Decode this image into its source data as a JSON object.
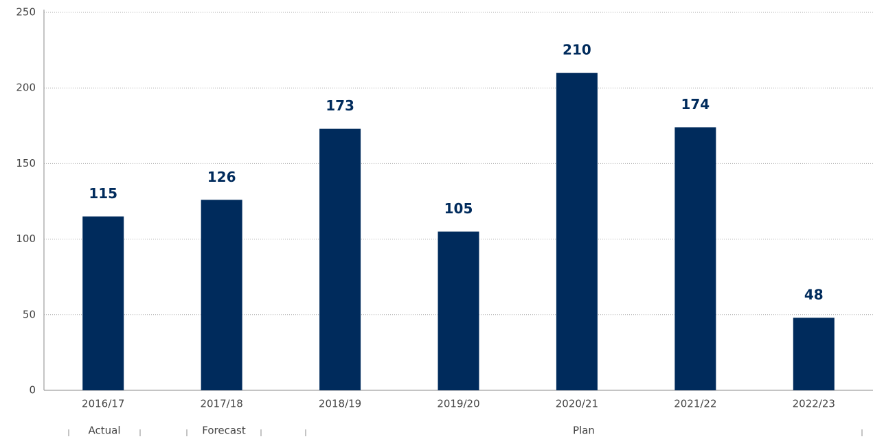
{
  "chart_data": {
    "type": "bar",
    "categories": [
      "2016/17",
      "2017/18",
      "2018/19",
      "2019/20",
      "2020/21",
      "2021/22",
      "2022/23"
    ],
    "values": [
      115,
      126,
      173,
      105,
      210,
      174,
      48
    ],
    "color": "#002b5c",
    "ylim": [
      0,
      250
    ],
    "yticks": [
      0,
      50,
      100,
      150,
      200,
      250
    ],
    "grid": true,
    "groups": [
      "Actual",
      "Forecast",
      "Plan"
    ]
  }
}
